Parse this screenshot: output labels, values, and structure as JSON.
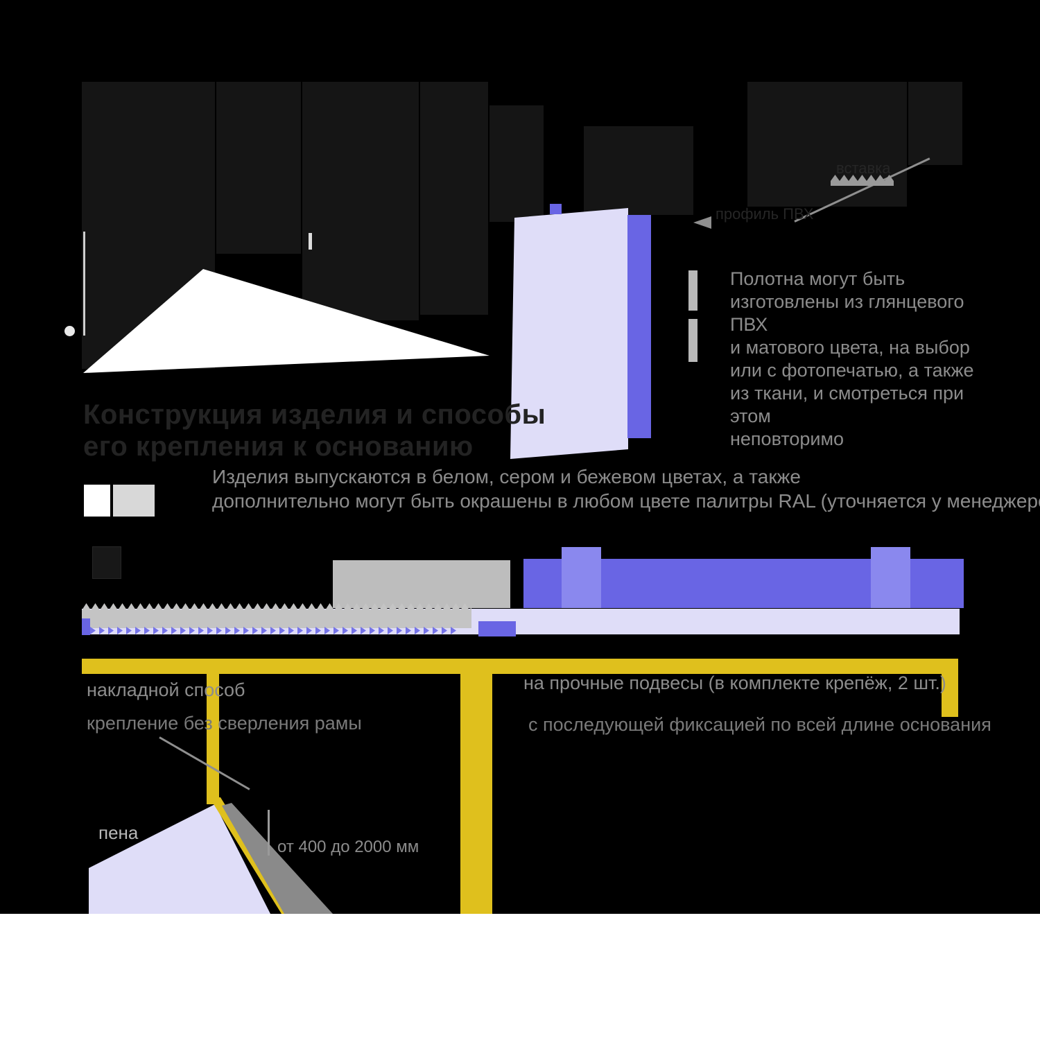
{
  "page": {
    "background": "#000000",
    "footer_band": "#FFFFFF"
  },
  "title": {
    "line1": "Конструкция изделия и способы",
    "line2": "его крепления к основанию"
  },
  "intro": {
    "line1": "Изделия выпускаются в белом, сером и бежевом цветах, а также",
    "line2": "дополнительно могут быть окрашены в любом цвете палитры RAL (уточняется у менеджеров)"
  },
  "right_block": {
    "lines": [
      "Полотна могут быть",
      "изготовлены из глянцевого ПВХ",
      "и матового цвета, на выбор",
      "или с фотопечатью, а также",
      "из ткани, и смотреться при этом",
      "неповторимо"
    ]
  },
  "callouts": {
    "insert": "вставка",
    "profile": "профиль ПВХ"
  },
  "methods": {
    "left": {
      "line1": "накладной способ",
      "line2": "крепление без сверления рамы"
    },
    "right": {
      "line1": "на прочные подвесы (в комплекте крепёж, 2 шт.)",
      "line2": "с последующей фиксацией по всей длине основания"
    }
  },
  "annotations": {
    "foam": "пена",
    "dimension": "от 400 до 2000 мм"
  },
  "colors": {
    "accent_purple": "#6965E4",
    "light_purple": "#8A88EE",
    "lavender": "#DFDDF8",
    "yellow": "#DFC01D",
    "gray_text": "#8C8C8C",
    "band_gray": "#C4C4C4",
    "white": "#FFFFFF"
  }
}
